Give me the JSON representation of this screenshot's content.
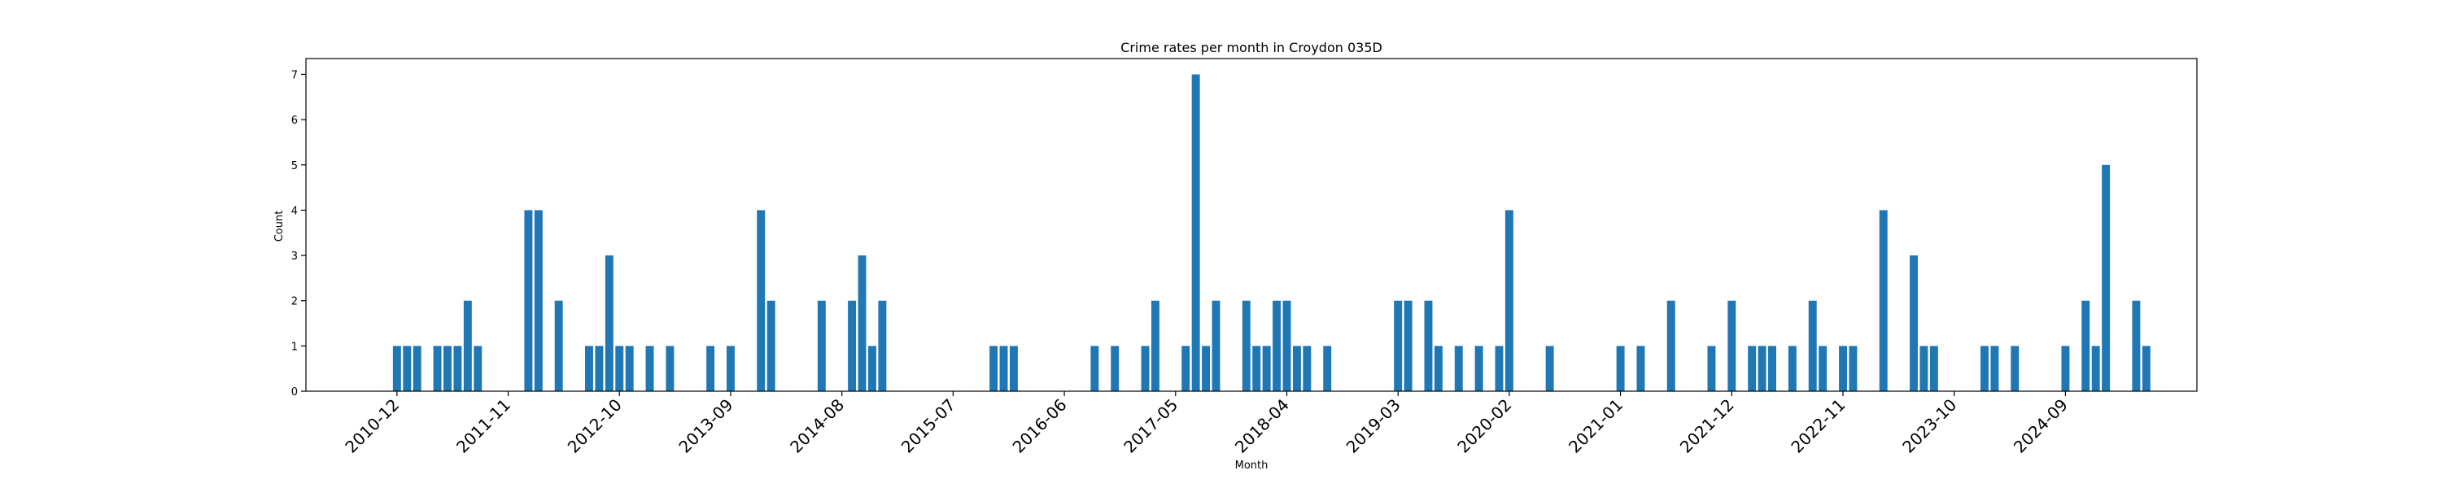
{
  "chart_data": {
    "type": "bar",
    "title": "Crime rates per month in Croydon 035D",
    "xlabel": "Month",
    "ylabel": "Count",
    "ylim": [
      0,
      7.35
    ],
    "yticks": [
      0,
      1,
      2,
      3,
      4,
      5,
      6,
      7
    ],
    "xlim": [
      "2010-03",
      "2025-10"
    ],
    "xtick_labels": [
      "2010-12",
      "2011-11",
      "2012-10",
      "2013-09",
      "2014-08",
      "2015-07",
      "2016-06",
      "2017-05",
      "2018-04",
      "2019-03",
      "2020-02",
      "2021-01",
      "2021-12",
      "2022-11",
      "2023-10",
      "2024-09"
    ],
    "bar_color": "#1f77b4",
    "grid": false,
    "legend": "none",
    "x": [
      "2010-12",
      "2011-01",
      "2011-02",
      "2011-04",
      "2011-05",
      "2011-06",
      "2011-07",
      "2011-08",
      "2012-01",
      "2012-02",
      "2012-04",
      "2012-07",
      "2012-08",
      "2012-09",
      "2012-10",
      "2012-11",
      "2013-01",
      "2013-03",
      "2013-07",
      "2013-09",
      "2013-12",
      "2014-01",
      "2014-06",
      "2014-09",
      "2014-10",
      "2014-11",
      "2014-12",
      "2015-11",
      "2015-12",
      "2016-01",
      "2016-09",
      "2016-11",
      "2017-02",
      "2017-03",
      "2017-06",
      "2017-07",
      "2017-08",
      "2017-09",
      "2017-12",
      "2018-01",
      "2018-02",
      "2018-03",
      "2018-04",
      "2018-05",
      "2018-06",
      "2018-08",
      "2019-03",
      "2019-04",
      "2019-06",
      "2019-07",
      "2019-09",
      "2019-11",
      "2020-01",
      "2020-02",
      "2020-06",
      "2021-01",
      "2021-03",
      "2021-06",
      "2021-10",
      "2021-12",
      "2022-02",
      "2022-03",
      "2022-04",
      "2022-06",
      "2022-08",
      "2022-09",
      "2022-11",
      "2022-12",
      "2023-03",
      "2023-06",
      "2023-07",
      "2023-08",
      "2024-01",
      "2024-02",
      "2024-04",
      "2024-09",
      "2024-11",
      "2024-12",
      "2025-01",
      "2025-04",
      "2025-05"
    ],
    "values": [
      1,
      1,
      1,
      1,
      1,
      1,
      2,
      1,
      4,
      4,
      2,
      1,
      1,
      3,
      1,
      1,
      1,
      1,
      1,
      1,
      4,
      2,
      2,
      2,
      3,
      1,
      2,
      1,
      1,
      1,
      1,
      1,
      1,
      2,
      1,
      7,
      1,
      2,
      2,
      1,
      1,
      2,
      2,
      1,
      1,
      1,
      2,
      2,
      2,
      1,
      1,
      1,
      1,
      4,
      1,
      1,
      1,
      2,
      1,
      2,
      1,
      1,
      1,
      1,
      2,
      1,
      1,
      1,
      4,
      3,
      1,
      1,
      1,
      1,
      1,
      1,
      2,
      1,
      5,
      2,
      1
    ]
  }
}
